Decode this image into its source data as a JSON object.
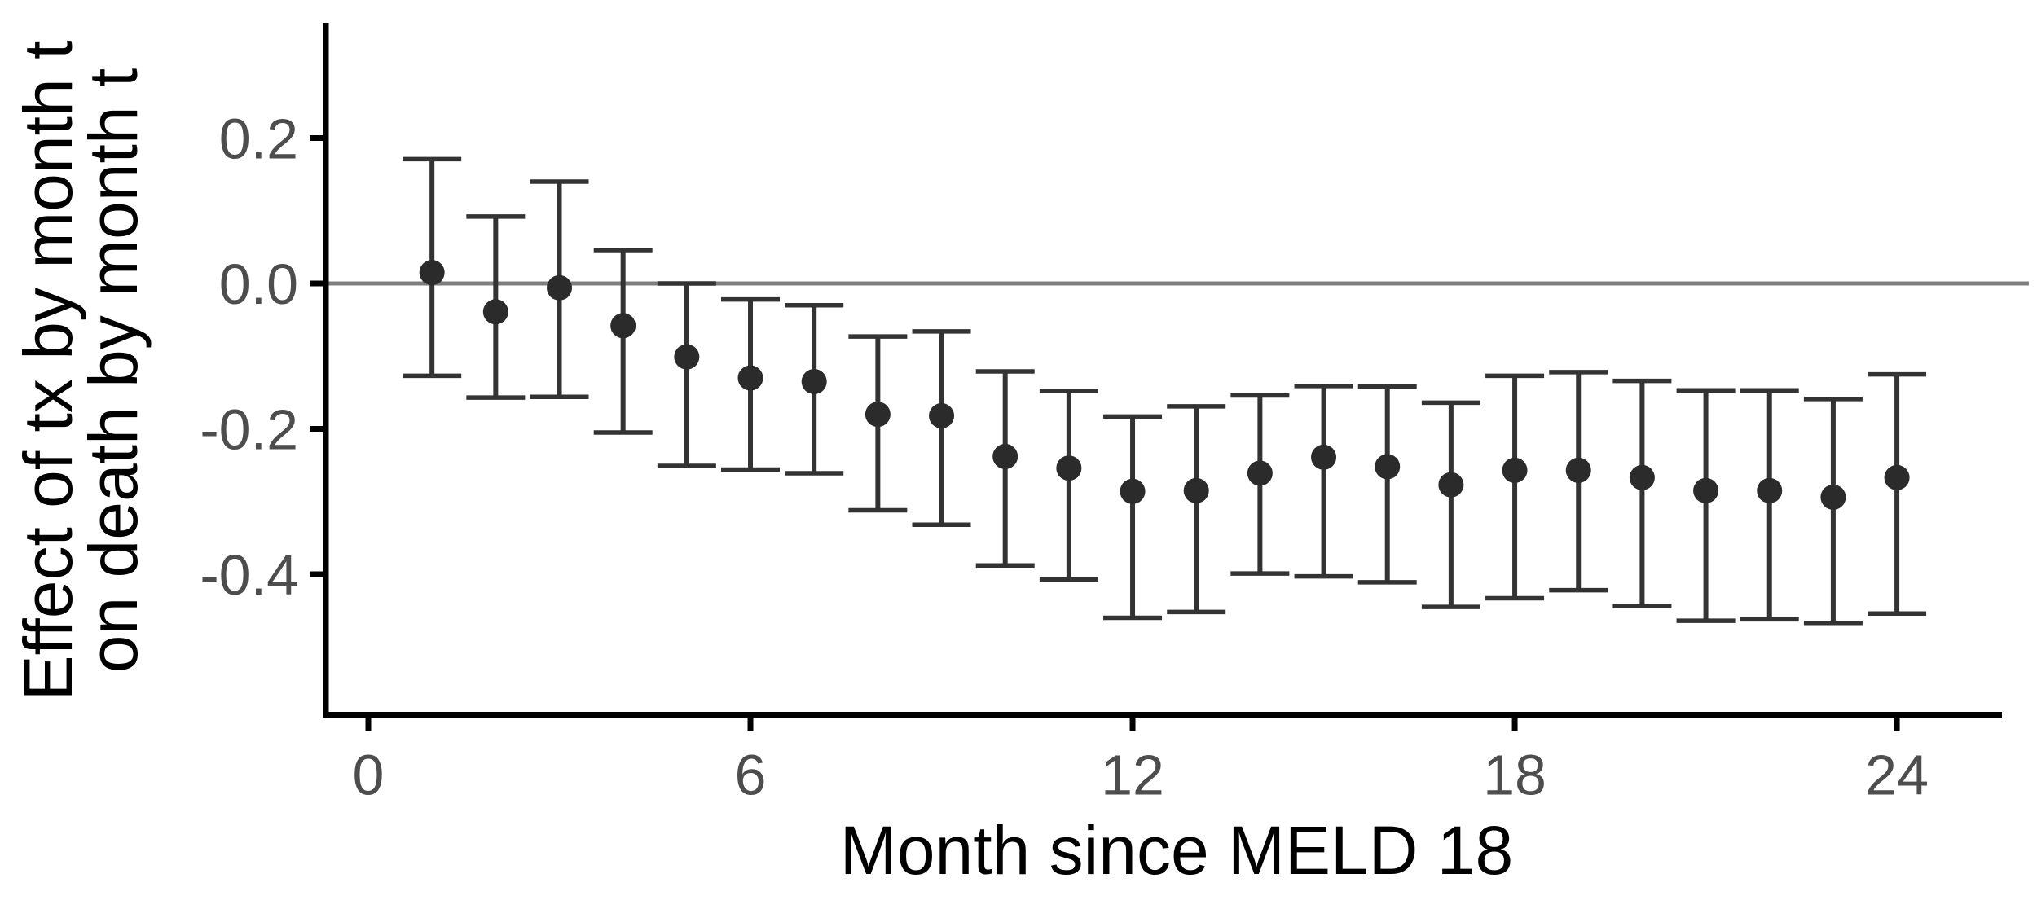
{
  "chart_data": {
    "type": "scatter",
    "subtype": "point-estimates-with-error-bars",
    "title": "",
    "xlabel": "Month since MELD 18",
    "ylabel_line1": "Effect of tx by month t",
    "ylabel_line2": "on death by month t",
    "x_ticks": [
      "0",
      "6",
      "12",
      "18",
      "24"
    ],
    "x_tick_values": [
      0,
      6,
      12,
      18,
      24
    ],
    "y_ticks": [
      "0.2",
      "0.0",
      "-0.2",
      "-0.4"
    ],
    "y_tick_values": [
      0.2,
      0.0,
      -0.2,
      -0.4
    ],
    "xlim": [
      -0.7,
      25.6
    ],
    "ylim": [
      -0.59,
      0.36
    ],
    "grid": "off",
    "legend": "none",
    "reference_line_y": 0.0,
    "points": [
      {
        "x": 1,
        "y": 0.015,
        "lo": -0.127,
        "hi": 0.171
      },
      {
        "x": 2,
        "y": -0.039,
        "lo": -0.157,
        "hi": 0.092
      },
      {
        "x": 3,
        "y": -0.006,
        "lo": -0.156,
        "hi": 0.14
      },
      {
        "x": 4,
        "y": -0.058,
        "lo": -0.205,
        "hi": 0.046
      },
      {
        "x": 5,
        "y": -0.101,
        "lo": -0.251,
        "hi": 0.0
      },
      {
        "x": 6,
        "y": -0.13,
        "lo": -0.256,
        "hi": -0.022
      },
      {
        "x": 7,
        "y": -0.135,
        "lo": -0.261,
        "hi": -0.03
      },
      {
        "x": 8,
        "y": -0.18,
        "lo": -0.312,
        "hi": -0.073
      },
      {
        "x": 9,
        "y": -0.182,
        "lo": -0.332,
        "hi": -0.066
      },
      {
        "x": 10,
        "y": -0.238,
        "lo": -0.388,
        "hi": -0.121
      },
      {
        "x": 11,
        "y": -0.254,
        "lo": -0.407,
        "hi": -0.148
      },
      {
        "x": 12,
        "y": -0.286,
        "lo": -0.46,
        "hi": -0.183
      },
      {
        "x": 13,
        "y": -0.285,
        "lo": -0.452,
        "hi": -0.169
      },
      {
        "x": 14,
        "y": -0.261,
        "lo": -0.399,
        "hi": -0.154
      },
      {
        "x": 15,
        "y": -0.239,
        "lo": -0.403,
        "hi": -0.141
      },
      {
        "x": 16,
        "y": -0.252,
        "lo": -0.411,
        "hi": -0.142
      },
      {
        "x": 17,
        "y": -0.277,
        "lo": -0.445,
        "hi": -0.164
      },
      {
        "x": 18,
        "y": -0.257,
        "lo": -0.433,
        "hi": -0.127
      },
      {
        "x": 19,
        "y": -0.257,
        "lo": -0.422,
        "hi": -0.122
      },
      {
        "x": 20,
        "y": -0.267,
        "lo": -0.444,
        "hi": -0.134
      },
      {
        "x": 21,
        "y": -0.285,
        "lo": -0.464,
        "hi": -0.147
      },
      {
        "x": 22,
        "y": -0.285,
        "lo": -0.462,
        "hi": -0.147
      },
      {
        "x": 23,
        "y": -0.294,
        "lo": -0.467,
        "hi": -0.159
      },
      {
        "x": 24,
        "y": -0.267,
        "lo": -0.454,
        "hi": -0.125
      }
    ],
    "colors": {
      "point": "#2b2b2b",
      "error_bar": "#333333",
      "zero_line": "#7f7f7f",
      "axis_line": "#000000",
      "tick_label": "#4d4d4d",
      "axis_title": "#000000",
      "background": "#ffffff"
    }
  }
}
